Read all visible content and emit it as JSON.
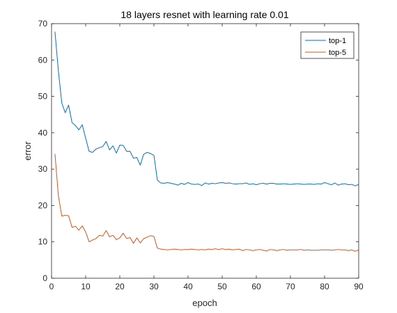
{
  "chart_data": {
    "type": "line",
    "title": "18 layers resnet with learning rate 0.01",
    "xlabel": "epoch",
    "ylabel": "error",
    "xlim": [
      0,
      90
    ],
    "ylim": [
      0,
      70
    ],
    "xticks": [
      0,
      10,
      20,
      30,
      40,
      50,
      60,
      70,
      80,
      90
    ],
    "yticks": [
      0,
      10,
      20,
      30,
      40,
      50,
      60,
      70
    ],
    "grid": false,
    "legend": "top-right",
    "x": [
      1,
      2,
      3,
      4,
      5,
      6,
      7,
      8,
      9,
      10,
      11,
      12,
      13,
      14,
      15,
      16,
      17,
      18,
      19,
      20,
      21,
      22,
      23,
      24,
      25,
      26,
      27,
      28,
      29,
      30,
      31,
      32,
      33,
      34,
      35,
      36,
      37,
      38,
      39,
      40,
      41,
      42,
      43,
      44,
      45,
      46,
      47,
      48,
      49,
      50,
      51,
      52,
      53,
      54,
      55,
      56,
      57,
      58,
      59,
      60,
      61,
      62,
      63,
      64,
      65,
      66,
      67,
      68,
      69,
      70,
      71,
      72,
      73,
      74,
      75,
      76,
      77,
      78,
      79,
      80,
      81,
      82,
      83,
      84,
      85,
      86,
      87,
      88,
      89,
      90
    ],
    "series": [
      {
        "name": "top-1",
        "color": "#0072BD",
        "values": [
          67.8,
          57.0,
          48.2,
          45.5,
          47.6,
          42.8,
          42.0,
          40.8,
          42.2,
          38.5,
          34.9,
          34.6,
          35.5,
          35.9,
          36.2,
          37.6,
          35.3,
          36.4,
          34.4,
          36.6,
          36.5,
          34.9,
          34.9,
          33.0,
          33.2,
          31.1,
          34.1,
          34.6,
          34.3,
          33.8,
          27.0,
          26.2,
          26.1,
          26.3,
          26.1,
          25.9,
          25.6,
          26.1,
          25.8,
          26.3,
          25.9,
          25.8,
          25.9,
          25.5,
          26.2,
          25.9,
          26.1,
          26.0,
          26.2,
          26.3,
          26.1,
          26.2,
          26.0,
          25.9,
          26.0,
          26.0,
          26.2,
          25.8,
          26.0,
          25.7,
          26.0,
          26.1,
          25.9,
          26.1,
          26.1,
          25.9,
          25.9,
          26.0,
          25.9,
          25.8,
          25.9,
          26.0,
          25.9,
          25.8,
          25.9,
          25.9,
          25.8,
          26.0,
          25.9,
          26.3,
          26.0,
          25.7,
          26.2,
          25.6,
          25.9,
          26.0,
          25.7,
          25.8,
          25.4,
          25.8
        ]
      },
      {
        "name": "top-5",
        "color": "#D95319",
        "values": [
          34.2,
          22.7,
          17.1,
          17.3,
          17.2,
          14.0,
          14.3,
          13.2,
          14.4,
          12.7,
          10.0,
          10.5,
          10.9,
          11.8,
          11.6,
          13.1,
          11.4,
          11.8,
          10.6,
          11.1,
          12.4,
          10.9,
          11.2,
          9.6,
          11.1,
          9.7,
          10.9,
          11.3,
          11.7,
          11.5,
          8.3,
          8.0,
          7.9,
          7.8,
          7.9,
          8.0,
          7.9,
          7.8,
          7.9,
          7.9,
          8.0,
          7.9,
          7.8,
          7.9,
          7.8,
          8.0,
          7.9,
          8.1,
          7.9,
          8.1,
          7.9,
          8.0,
          7.8,
          7.9,
          8.0,
          7.6,
          7.9,
          7.8,
          7.6,
          7.8,
          7.9,
          7.7,
          7.5,
          7.9,
          7.8,
          7.6,
          7.8,
          7.9,
          7.7,
          7.8,
          7.8,
          7.8,
          7.9,
          7.7,
          7.8,
          7.7,
          7.7,
          7.7,
          7.8,
          7.8,
          7.8,
          7.7,
          7.8,
          7.9,
          7.8,
          7.8,
          7.6,
          7.8,
          7.4,
          7.8
        ]
      }
    ]
  }
}
